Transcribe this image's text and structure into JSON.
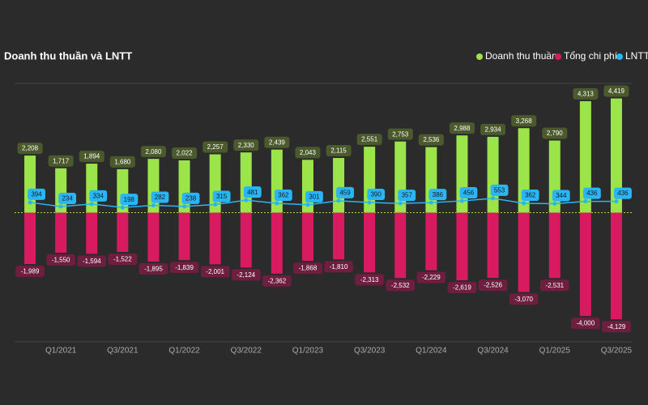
{
  "chart_data": {
    "type": "bar",
    "title": "Doanh thu thuần và LNTT",
    "categories": [
      null,
      "Q1/2021",
      null,
      "Q3/2021",
      null,
      "Q1/2022",
      null,
      "Q3/2022",
      null,
      "Q1/2023",
      null,
      "Q3/2023",
      null,
      "Q1/2024",
      null,
      "Q3/2024",
      null,
      "Q1/2025",
      null,
      "Q3/2025"
    ],
    "series": [
      {
        "name": "Doanh thu thuần",
        "color": "#9be44a",
        "type": "bar",
        "values": [
          2208,
          1717,
          1894,
          1680,
          2080,
          2022,
          2257,
          2330,
          2439,
          2043,
          2115,
          2551,
          2753,
          2536,
          2988,
          2934,
          3268,
          2790,
          4313,
          4419
        ],
        "value_labels": [
          "2,208",
          "1,717",
          "1,894",
          "1,680",
          "2,080",
          "2,022",
          "2,257",
          "2,330",
          "2,439",
          "2,043",
          "2,115",
          "2,551",
          "2,753",
          "2,536",
          "2,988",
          "2,934",
          "3,268",
          "2,790",
          "4,313",
          "4,419"
        ]
      },
      {
        "name": "Tổng chi phí",
        "color": "#d81b60",
        "type": "bar",
        "values": [
          -1989,
          -1550,
          -1594,
          -1522,
          -1895,
          -1839,
          -2001,
          -2124,
          -2362,
          -1868,
          -1810,
          -2313,
          -2532,
          -2229,
          -2619,
          -2526,
          -3070,
          -2531,
          -4000,
          -4129
        ],
        "value_labels": [
          "-1,989",
          "-1,550",
          "-1,594",
          "-1,522",
          "-1,895",
          "-1,839",
          "-2,001",
          "-2,124",
          "-2,362",
          "-1,868",
          "-1,810",
          "-2,313",
          "-2,532",
          "-2,229",
          "-2,619",
          "-2,526",
          "-3,070",
          "-2,531",
          "-4,000",
          "-4,129"
        ]
      },
      {
        "name": "LNTT",
        "color": "#29b6f6",
        "type": "line",
        "values": [
          394,
          234,
          334,
          198,
          282,
          238,
          315,
          481,
          362,
          301,
          459,
          390,
          357,
          386,
          456,
          553,
          362,
          344,
          436,
          436
        ]
      }
    ],
    "ylim": [
      -5000,
      5000
    ]
  }
}
